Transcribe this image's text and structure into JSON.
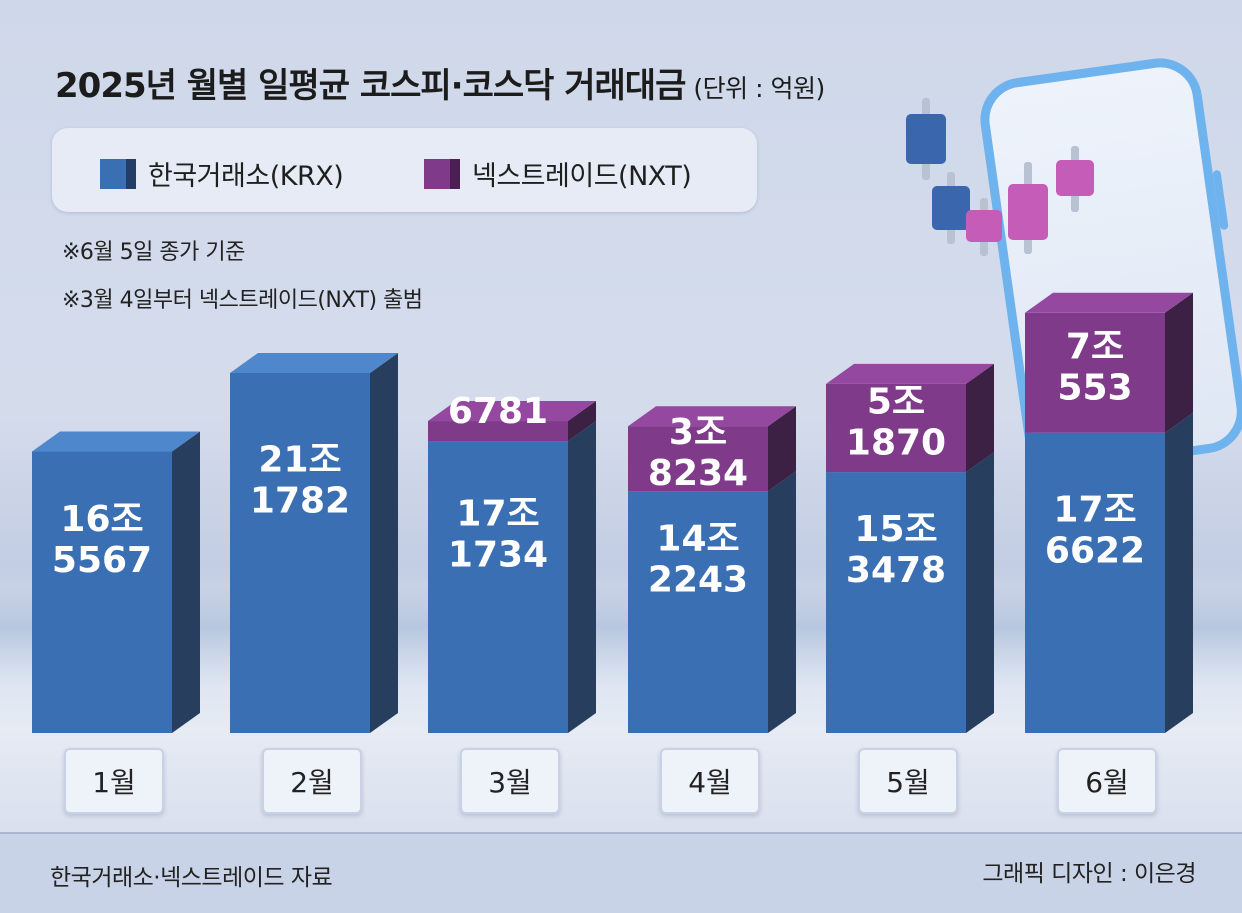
{
  "title": "2025년 월별 일평균 코스피·코스닥 거래대금",
  "unit": "(단위 : 억원)",
  "legend": [
    {
      "label": "한국거래소(KRX)",
      "color": "#3b6fb4"
    },
    {
      "label": "넥스트레이드(NXT)",
      "color": "#7f3a8a"
    }
  ],
  "notes": [
    "※6월 5일 종가 기준",
    "※3월 4일부터 넥스트레이드(NXT) 출범"
  ],
  "source": "한국거래소·넥스트레이드 자료",
  "credit": "그래픽 디자인 : 이은경",
  "colors": {
    "krx": "#3b6fb4",
    "nxt": "#7f3a8a",
    "background": "#cfd8ea"
  },
  "chart_data": {
    "type": "bar",
    "stacked": true,
    "categories": [
      "1월",
      "2월",
      "3월",
      "4월",
      "5월",
      "6월"
    ],
    "series": [
      {
        "name": "한국거래소(KRX)",
        "values": [
          165567,
          211782,
          171734,
          142243,
          153478,
          176622
        ],
        "labels": [
          [
            "16조",
            "5567"
          ],
          [
            "21조",
            "1782"
          ],
          [
            "17조",
            "1734"
          ],
          [
            "14조",
            "2243"
          ],
          [
            "15조",
            "3478"
          ],
          [
            "17조",
            "6622"
          ]
        ]
      },
      {
        "name": "넥스트레이드(NXT)",
        "values": [
          0,
          0,
          6781,
          38234,
          51870,
          70553
        ],
        "labels": [
          null,
          null,
          [
            "",
            "6781"
          ],
          [
            "3조",
            "8234"
          ],
          [
            "5조",
            "1870"
          ],
          [
            "7조",
            "553"
          ]
        ]
      }
    ],
    "ylim": [
      0,
      250000
    ],
    "grid": false,
    "legend_position": "top-left"
  }
}
